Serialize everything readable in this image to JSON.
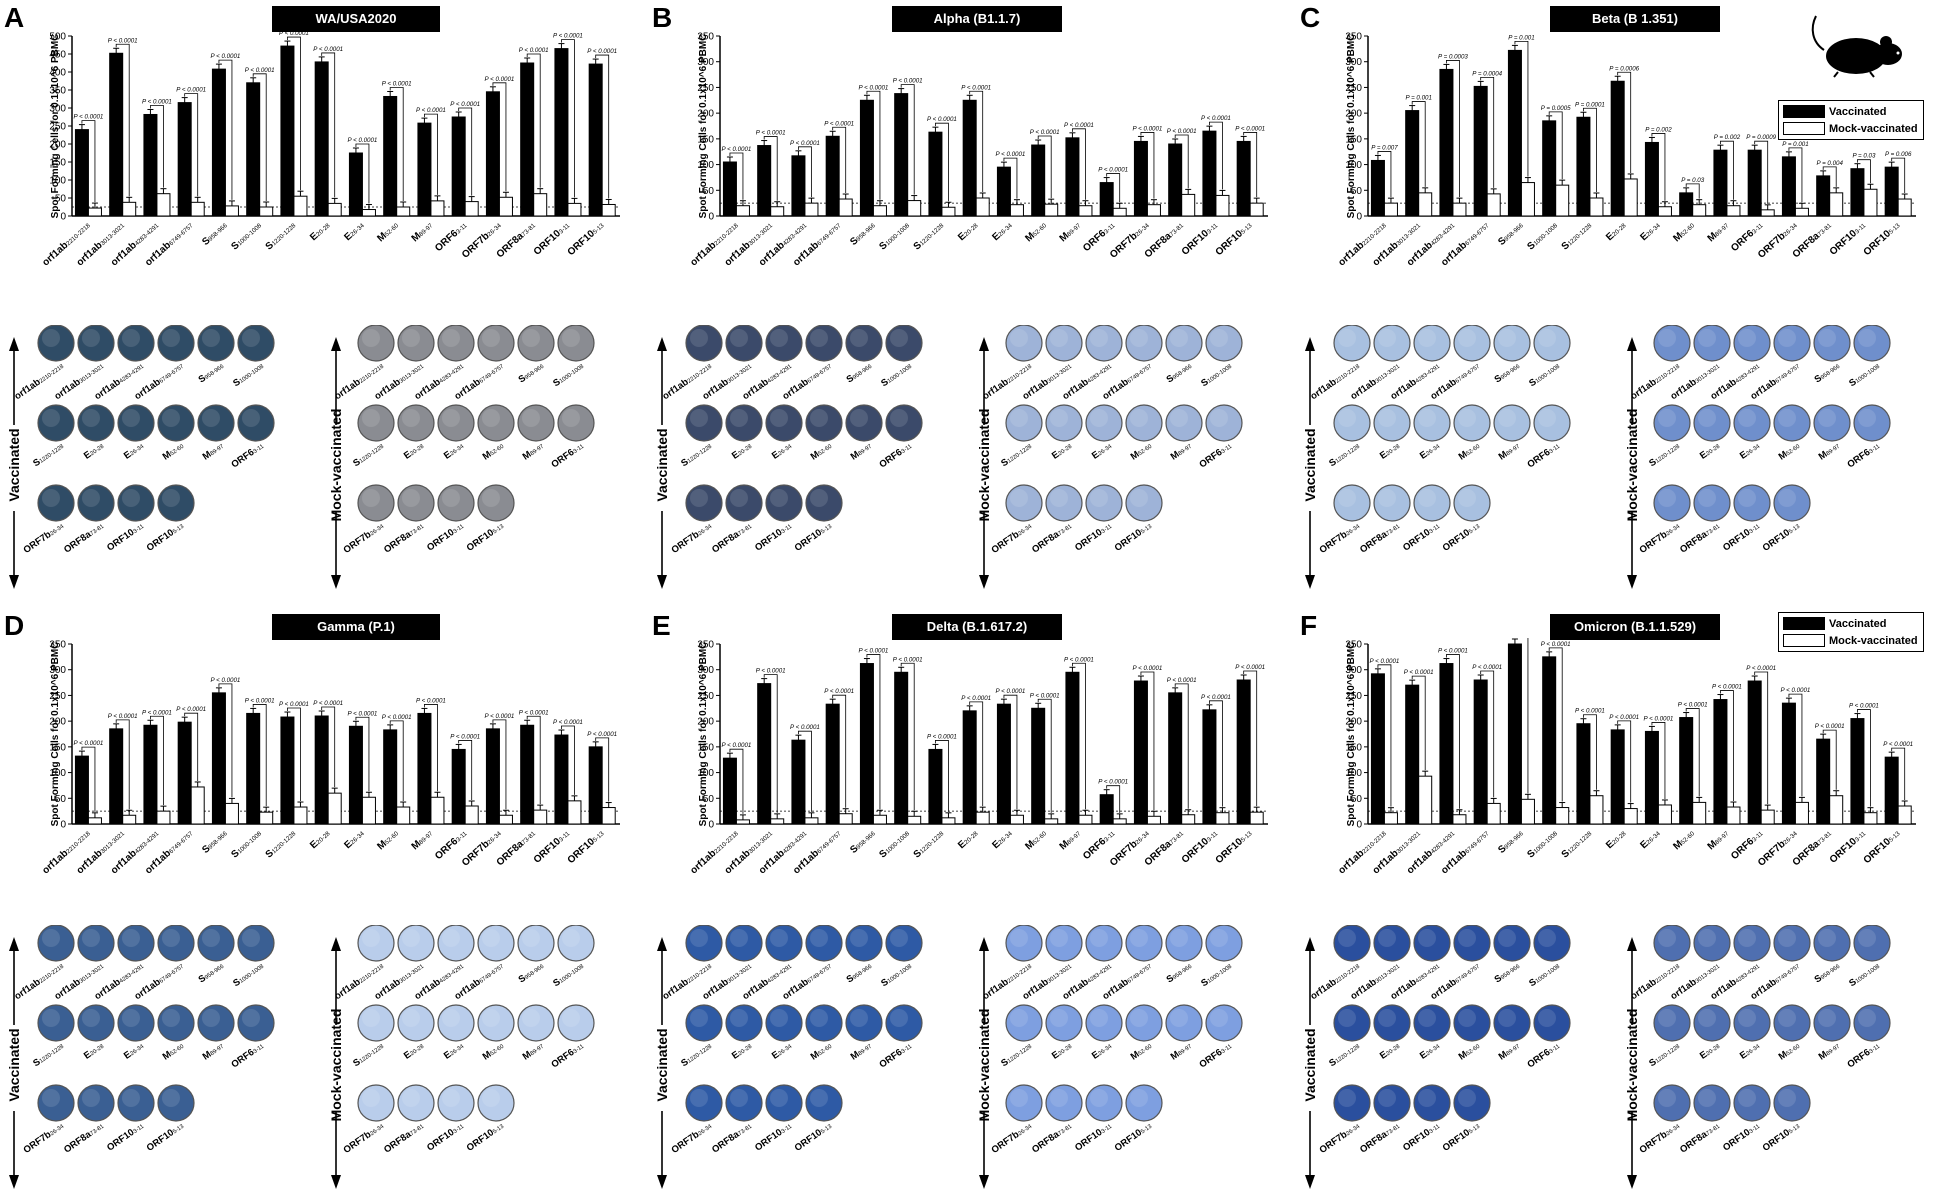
{
  "legend": {
    "vaccinated": "Vaccinated",
    "mock": "Mock-vaccinated"
  },
  "colors": {
    "vaccinated": "#000000",
    "mock": "#ffffff"
  },
  "ylabel": "Spot Forming Cells for 0.1x10^6 PBMC",
  "well_group_labels": {
    "vaccinated": "Vaccinated",
    "mock": "Mock-vaccinated"
  },
  "peptides": [
    {
      "main": "orf1ab",
      "sub": "2210-2218"
    },
    {
      "main": "orf1ab",
      "sub": "3013-3021"
    },
    {
      "main": "orf1ab",
      "sub": "4283-4291"
    },
    {
      "main": "orf1ab",
      "sub": "6749-6757"
    },
    {
      "main": "S",
      "sub": "958-966"
    },
    {
      "main": "S",
      "sub": "1000-1008"
    },
    {
      "main": "S",
      "sub": "1220-1228"
    },
    {
      "main": "E",
      "sub": "20-28"
    },
    {
      "main": "E",
      "sub": "26-34"
    },
    {
      "main": "M",
      "sub": "52-60"
    },
    {
      "main": "M",
      "sub": "89-97"
    },
    {
      "main": "ORF6",
      "sub": "3-11"
    },
    {
      "main": "ORF7b",
      "sub": "26-34"
    },
    {
      "main": "ORF8a",
      "sub": "73-81"
    },
    {
      "main": "ORF10",
      "sub": "3-11"
    },
    {
      "main": "ORF10",
      "sub": "5-13"
    }
  ],
  "chart_data": [
    {
      "panel": "A",
      "type": "bar",
      "title": "WA/USA2020",
      "ylim": [
        0,
        500
      ],
      "yticks": [
        0,
        50,
        100,
        150,
        200,
        250,
        300,
        350,
        400,
        450,
        500
      ],
      "series": [
        {
          "name": "Vaccinated",
          "values": [
            240,
            452,
            282,
            315,
            408,
            370,
            472,
            428,
            175,
            332,
            258,
            275,
            345,
            425,
            465,
            422
          ]
        },
        {
          "name": "Mock-vaccinated",
          "values": [
            22,
            38,
            62,
            38,
            28,
            25,
            55,
            35,
            18,
            25,
            42,
            40,
            52,
            62,
            35,
            32
          ]
        }
      ],
      "pvalues": [
        "P < 0.0001",
        "P < 0.0001",
        "P < 0.0001",
        "P < 0.0001",
        "P < 0.0001",
        "P < 0.0001",
        "P < 0.0001",
        "P < 0.0001",
        "P < 0.0001",
        "P < 0.0001",
        "P < 0.0001",
        "P < 0.0001",
        "P < 0.0001",
        "P < 0.0001",
        "P < 0.0001",
        "P < 0.0001"
      ]
    },
    {
      "panel": "B",
      "type": "bar",
      "title": "Alpha (B1.1.7)",
      "ylim": [
        0,
        350
      ],
      "yticks": [
        0,
        50,
        100,
        150,
        200,
        250,
        300,
        350
      ],
      "series": [
        {
          "name": "Vaccinated",
          "values": [
            105,
            137,
            117,
            155,
            225,
            238,
            163,
            225,
            95,
            138,
            152,
            65,
            145,
            140,
            165,
            145
          ]
        },
        {
          "name": "Mock-vaccinated",
          "values": [
            20,
            18,
            25,
            33,
            20,
            30,
            17,
            35,
            22,
            23,
            20,
            15,
            22,
            42,
            40,
            25
          ]
        }
      ],
      "pvalues": [
        "P < 0.0001",
        "P < 0.0001",
        "P < 0.0001",
        "P < 0.0001",
        "P < 0.0001",
        "P < 0.0001",
        "P < 0.0001",
        "P < 0.0001",
        "P < 0.0001",
        "P < 0.0001",
        "P < 0.0001",
        "P < 0.0001",
        "P < 0.0001",
        "P < 0.0001",
        "P < 0.0001",
        "P < 0.0001"
      ]
    },
    {
      "panel": "C",
      "type": "bar",
      "title": "Beta (B 1.351)",
      "ylim": [
        0,
        350
      ],
      "yticks": [
        0,
        50,
        100,
        150,
        200,
        250,
        300,
        350
      ],
      "series": [
        {
          "name": "Vaccinated",
          "values": [
            108,
            205,
            285,
            252,
            322,
            185,
            192,
            262,
            143,
            45,
            128,
            128,
            115,
            78,
            92,
            95
          ]
        },
        {
          "name": "Mock-vaccinated",
          "values": [
            25,
            45,
            25,
            43,
            65,
            60,
            35,
            72,
            18,
            22,
            20,
            12,
            15,
            45,
            52,
            33
          ]
        }
      ],
      "pvalues": [
        "P = 0.007",
        "P = 0.001",
        "P = 0.0003",
        "P = 0.0004",
        "P = 0.001",
        "P = 0.0005",
        "P = 0.0001",
        "P = 0.0006",
        "P = 0.002",
        "P = 0.03",
        "P = 0.002",
        "P = 0.0009",
        "P = 0.001",
        "P = 0.004",
        "P = 0.03",
        "P = 0.006"
      ]
    },
    {
      "panel": "D",
      "type": "bar",
      "title": "Gamma (P.1)",
      "ylim": [
        0,
        350
      ],
      "yticks": [
        0,
        50,
        100,
        150,
        200,
        250,
        300,
        350
      ],
      "series": [
        {
          "name": "Vaccinated",
          "values": [
            132,
            185,
            192,
            198,
            255,
            215,
            208,
            210,
            190,
            183,
            215,
            145,
            185,
            192,
            173,
            150
          ]
        },
        {
          "name": "Mock-vaccinated",
          "values": [
            12,
            17,
            25,
            72,
            40,
            23,
            33,
            60,
            52,
            33,
            52,
            35,
            17,
            27,
            45,
            32
          ]
        }
      ],
      "pvalues": [
        "P < 0.0001",
        "P < 0.0001",
        "P < 0.0001",
        "P < 0.0001",
        "P < 0.0001",
        "P < 0.0001",
        "P < 0.0001",
        "P < 0.0001",
        "P < 0.0001",
        "P < 0.0001",
        "P < 0.0001",
        "P < 0.0001",
        "P < 0.0001",
        "P < 0.0001",
        "P < 0.0001",
        "P < 0.0001"
      ]
    },
    {
      "panel": "E",
      "type": "bar",
      "title": "Delta (B.1.617.2)",
      "ylim": [
        0,
        350
      ],
      "yticks": [
        0,
        50,
        100,
        150,
        200,
        250,
        300,
        350
      ],
      "series": [
        {
          "name": "Vaccinated",
          "values": [
            128,
            273,
            163,
            233,
            312,
            295,
            145,
            220,
            233,
            225,
            295,
            57,
            278,
            255,
            222,
            280
          ]
        },
        {
          "name": "Mock-vaccinated",
          "values": [
            8,
            10,
            12,
            20,
            17,
            15,
            12,
            23,
            17,
            10,
            17,
            10,
            15,
            18,
            22,
            23
          ]
        }
      ],
      "pvalues": [
        "P < 0.0001",
        "P < 0.0001",
        "P < 0.0001",
        "P < 0.0001",
        "P < 0.0001",
        "P < 0.0001",
        "P < 0.0001",
        "P < 0.0001",
        "P < 0.0001",
        "P < 0.0001",
        "P < 0.0001",
        "P < 0.0001",
        "P < 0.0001",
        "P < 0.0001",
        "P < 0.0001",
        "P < 0.0001"
      ]
    },
    {
      "panel": "F",
      "type": "bar",
      "title": "Omicron (B.1.1.529)",
      "ylim": [
        0,
        350
      ],
      "yticks": [
        0,
        50,
        100,
        150,
        200,
        250,
        300,
        350
      ],
      "series": [
        {
          "name": "Vaccinated",
          "values": [
            292,
            270,
            312,
            280,
            350,
            325,
            195,
            183,
            180,
            207,
            242,
            278,
            235,
            165,
            205,
            130
          ]
        },
        {
          "name": "Mock-vaccinated",
          "values": [
            22,
            93,
            18,
            40,
            48,
            32,
            55,
            30,
            37,
            42,
            33,
            27,
            42,
            55,
            22,
            35
          ]
        }
      ],
      "pvalues": [
        "P < 0.0001",
        "P < 0.0001",
        "P < 0.0001",
        "P < 0.0001",
        "P < 0.0001",
        "P < 0.0001",
        "P < 0.0001",
        "P < 0.0001",
        "P < 0.0001",
        "P < 0.0001",
        "P < 0.0001",
        "P < 0.0001",
        "P < 0.0001",
        "P < 0.0001",
        "P < 0.0001",
        "P < 0.0001"
      ]
    }
  ],
  "wells": {
    "A": {
      "vac": "#2f4c66",
      "mock": "#8a8c92"
    },
    "B": {
      "vac": "#3b4a6a",
      "mock": "#9eb3d8"
    },
    "C": {
      "vac": "#a8c0e0",
      "mock": "#6f8fcc"
    },
    "D": {
      "vac": "#3a5f93",
      "mock": "#b9cdeb"
    },
    "E": {
      "vac": "#2e5aa5",
      "mock": "#7e9fe0"
    },
    "F": {
      "vac": "#2a4f9e",
      "mock": "#4f6fb0"
    }
  }
}
